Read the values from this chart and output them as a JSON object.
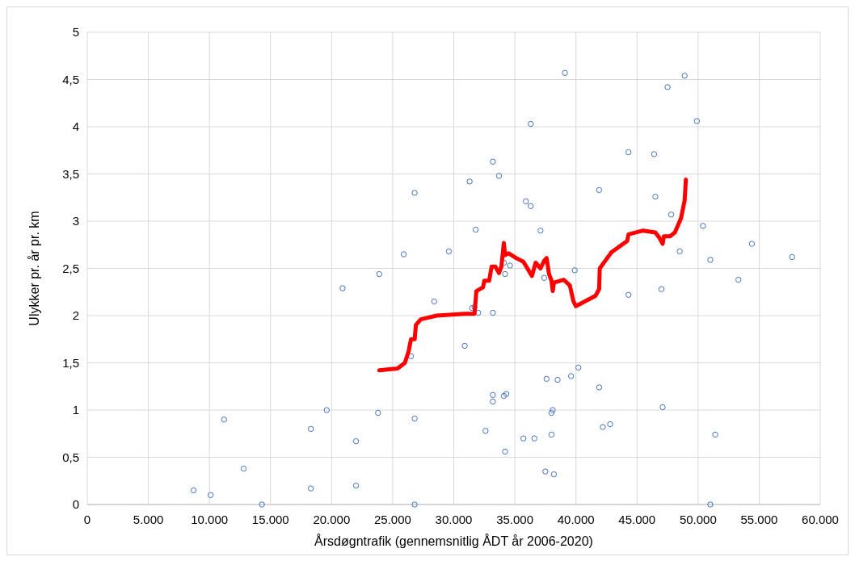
{
  "chart_data": {
    "type": "scatter",
    "xlabel": "Årsdøgntrafik (gennemsnitlig ÅDT år 2006-2020)",
    "ylabel": "Ulykker pr. år pr. km",
    "xlim": [
      0,
      60000
    ],
    "ylim": [
      0,
      5
    ],
    "xticks": [
      {
        "value": 0,
        "label": "0"
      },
      {
        "value": 5000,
        "label": "5.000"
      },
      {
        "value": 10000,
        "label": "10.000"
      },
      {
        "value": 15000,
        "label": "15.000"
      },
      {
        "value": 20000,
        "label": "20.000"
      },
      {
        "value": 25000,
        "label": "25.000"
      },
      {
        "value": 30000,
        "label": "30.000"
      },
      {
        "value": 35000,
        "label": "35.000"
      },
      {
        "value": 40000,
        "label": "40.000"
      },
      {
        "value": 45000,
        "label": "45.000"
      },
      {
        "value": 50000,
        "label": "50.000"
      },
      {
        "value": 55000,
        "label": "55.000"
      },
      {
        "value": 60000,
        "label": "60.000"
      }
    ],
    "yticks": [
      0,
      {
        "value": 0.5,
        "label": "0,5"
      },
      1,
      {
        "value": 1.5,
        "label": "1,5"
      },
      2,
      {
        "value": 2.5,
        "label": "2,5"
      },
      3,
      {
        "value": 3.5,
        "label": "3,5"
      },
      4,
      {
        "value": 4.5,
        "label": "4,5"
      },
      5
    ],
    "grid": true,
    "marker": "circle",
    "series": [
      {
        "color": "#4472c4",
        "x": [
          8700,
          10100,
          11200,
          12800,
          14300,
          18300,
          18300,
          19600,
          20900,
          22000,
          22000,
          23800,
          23900,
          25900,
          26500,
          26800,
          26800,
          26800,
          28400,
          29600,
          30900,
          31300,
          31500,
          31700,
          31800,
          32000,
          32600,
          33200,
          33200,
          33200,
          33200,
          33700,
          34100,
          34200,
          34100,
          34200,
          34300,
          34600,
          35700,
          35900,
          36300,
          36300,
          36600,
          37100,
          37400,
          37500,
          37600,
          38000,
          38000,
          38100,
          38200,
          38500,
          39100,
          39600,
          39900,
          40200,
          41900,
          41900,
          42200,
          42800,
          44300,
          44300,
          46400,
          46500,
          47000,
          47100,
          47500,
          47800,
          48500,
          48900,
          49900,
          50400,
          51000,
          51000,
          51400,
          53300,
          54400,
          57700
        ],
        "values": [
          0.15,
          0.1,
          0.9,
          0.38,
          0,
          0.17,
          0.8,
          1.0,
          2.29,
          0.67,
          0.2,
          0.97,
          2.44,
          2.65,
          1.57,
          0.91,
          3.3,
          0,
          2.15,
          2.68,
          1.68,
          3.42,
          2.08,
          2.09,
          2.91,
          2.03,
          0.78,
          3.63,
          2.03,
          1.09,
          1.16,
          3.48,
          1.15,
          0.56,
          2.56,
          2.44,
          1.17,
          2.53,
          0.7,
          3.21,
          4.03,
          3.16,
          0.7,
          2.9,
          2.4,
          0.35,
          1.33,
          0.97,
          0.74,
          1.0,
          0.32,
          1.32,
          4.57,
          1.36,
          2.48,
          1.45,
          1.24,
          3.33,
          0.82,
          0.85,
          3.73,
          2.22,
          3.71,
          3.26,
          2.28,
          1.03,
          4.42,
          3.07,
          2.68,
          4.54,
          4.06,
          2.95,
          2.59,
          0,
          0.74,
          2.38,
          2.76,
          2.62
        ]
      },
      {
        "type": "line",
        "color": "#ff0000",
        "marker": "none",
        "x": [
          23900,
          25400,
          26000,
          26300,
          26500,
          26800,
          26900,
          27300,
          28600,
          30900,
          31700,
          31850,
          32400,
          32500,
          32900,
          33100,
          33400,
          33700,
          33900,
          34100,
          34200,
          34500,
          35100,
          35700,
          36400,
          36700,
          37100,
          37400,
          37600,
          37800,
          38000,
          38100,
          38200,
          39000,
          39500,
          39800,
          40000,
          41600,
          41900,
          41950,
          42900,
          44200,
          44300,
          45500,
          46500,
          46800,
          47100,
          47200,
          47700,
          48100,
          48600,
          48900,
          49000
        ],
        "values": [
          1.42,
          1.44,
          1.5,
          1.62,
          1.75,
          1.75,
          1.9,
          1.96,
          2.0,
          2.02,
          2.02,
          2.26,
          2.3,
          2.37,
          2.37,
          2.52,
          2.52,
          2.45,
          2.52,
          2.77,
          2.64,
          2.66,
          2.61,
          2.57,
          2.42,
          2.56,
          2.5,
          2.58,
          2.61,
          2.44,
          2.37,
          2.26,
          2.35,
          2.38,
          2.32,
          2.15,
          2.1,
          2.21,
          2.28,
          2.5,
          2.67,
          2.79,
          2.86,
          2.9,
          2.88,
          2.83,
          2.76,
          2.84,
          2.84,
          2.88,
          3.03,
          3.22,
          3.44
        ]
      }
    ]
  }
}
